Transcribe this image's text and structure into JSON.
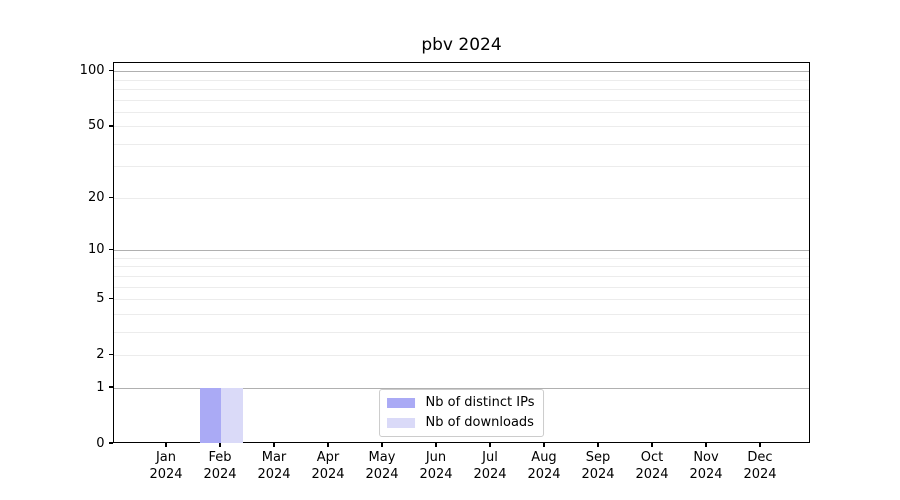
{
  "chart_data": {
    "type": "bar",
    "title": "pbv 2024",
    "categories": [
      "Jan",
      "Feb",
      "Mar",
      "Apr",
      "May",
      "Jun",
      "Jul",
      "Aug",
      "Sep",
      "Oct",
      "Nov",
      "Dec"
    ],
    "xtick_labels": [
      [
        "Jan",
        "2024"
      ],
      [
        "Feb",
        "2024"
      ],
      [
        "Mar",
        "2024"
      ],
      [
        "Apr",
        "2024"
      ],
      [
        "May",
        "2024"
      ],
      [
        "Jun",
        "2024"
      ],
      [
        "Jul",
        "2024"
      ],
      [
        "Aug",
        "2024"
      ],
      [
        "Sep",
        "2024"
      ],
      [
        "Oct",
        "2024"
      ],
      [
        "Nov",
        "2024"
      ],
      [
        "Dec",
        "2024"
      ]
    ],
    "series": [
      {
        "name": "Nb of distinct IPs",
        "color": "#aaaaf5",
        "values": [
          0,
          1,
          0,
          0,
          0,
          0,
          0,
          0,
          0,
          0,
          0,
          0
        ]
      },
      {
        "name": "Nb of downloads",
        "color": "#dadaf8",
        "values": [
          0,
          1,
          0,
          0,
          0,
          0,
          0,
          0,
          0,
          0,
          0,
          0
        ]
      }
    ],
    "xlabel": "",
    "ylabel": "",
    "yscale": "log1p",
    "ylim": [
      0,
      110.5
    ],
    "ytick_values": [
      0,
      1,
      2,
      5,
      10,
      20,
      50,
      100
    ],
    "ytick_labels": [
      "0",
      "1",
      "2",
      "5",
      "10",
      "20",
      "50",
      "100"
    ],
    "ygrid_major": [
      1,
      10,
      100
    ],
    "ygrid_minor": [
      2,
      3,
      4,
      5,
      6,
      7,
      8,
      9,
      20,
      30,
      40,
      50,
      60,
      70,
      80,
      90
    ],
    "grid_on": true,
    "legend": {
      "position": "lower center",
      "entries": [
        "Nb of distinct IPs",
        "Nb of downloads"
      ]
    },
    "colors": {
      "grid_major": "#b0b0b0",
      "grid_minor": "#ececec",
      "axis": "#000000",
      "legend_border": "#cccccc",
      "background": "#ffffff"
    }
  }
}
